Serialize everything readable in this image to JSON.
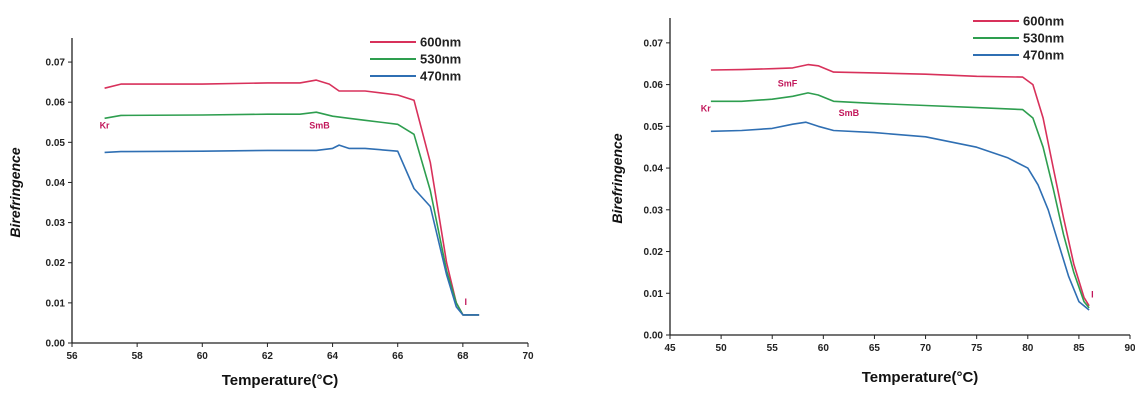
{
  "chart_data": [
    {
      "type": "line",
      "xlabel": "Temperature(°C)",
      "ylabel": "Birefringence",
      "xlim": [
        56,
        70
      ],
      "ylim": [
        0.0,
        0.075
      ],
      "xticks": [
        "56",
        "58",
        "60",
        "62",
        "64",
        "66",
        "68",
        "70"
      ],
      "yticks": [
        "0.00",
        "0.01",
        "0.02",
        "0.03",
        "0.04",
        "0.05",
        "0.06",
        "0.07"
      ],
      "legend": "top-right",
      "grid": false,
      "annotations": [
        {
          "text": "Kr",
          "x": 57.0,
          "y": 0.0535
        },
        {
          "text": "SmB",
          "x": 63.6,
          "y": 0.0535
        },
        {
          "text": "I",
          "x": 68.05,
          "y": 0.0095
        }
      ],
      "series": [
        {
          "name": "600nm",
          "color": "#d8315b",
          "x": [
            57.0,
            57.5,
            60,
            62,
            63.0,
            63.5,
            63.9,
            64.2,
            65.0,
            66.0,
            66.5,
            67.0,
            67.5,
            67.8,
            68.0,
            68.5
          ],
          "y": [
            0.0635,
            0.0645,
            0.0645,
            0.0648,
            0.0648,
            0.0655,
            0.0645,
            0.0628,
            0.0628,
            0.0618,
            0.0605,
            0.045,
            0.02,
            0.01,
            0.007,
            0.007
          ]
        },
        {
          "name": "530nm",
          "color": "#2e9e4f",
          "x": [
            57.0,
            57.5,
            60,
            62,
            63.0,
            63.5,
            64.0,
            64.5,
            65.0,
            66.0,
            66.5,
            67.0,
            67.5,
            67.8,
            68.0,
            68.5
          ],
          "y": [
            0.056,
            0.0567,
            0.0568,
            0.057,
            0.057,
            0.0575,
            0.0565,
            0.056,
            0.0555,
            0.0545,
            0.052,
            0.038,
            0.018,
            0.01,
            0.007,
            0.007
          ]
        },
        {
          "name": "470nm",
          "color": "#2f6fb3",
          "x": [
            57.0,
            57.5,
            60,
            62,
            63.5,
            64.0,
            64.2,
            64.5,
            65.0,
            66.0,
            66.5,
            67.0,
            67.5,
            67.8,
            68.0,
            68.5
          ],
          "y": [
            0.0475,
            0.0477,
            0.0478,
            0.048,
            0.048,
            0.0485,
            0.0493,
            0.0485,
            0.0485,
            0.0478,
            0.0385,
            0.034,
            0.017,
            0.009,
            0.007,
            0.007
          ]
        }
      ]
    },
    {
      "type": "line",
      "xlabel": "Temperature(°C)",
      "ylabel": "Birefringence",
      "xlim": [
        45,
        90
      ],
      "ylim": [
        0.0,
        0.075
      ],
      "xticks": [
        "45",
        "50",
        "55",
        "60",
        "65",
        "70",
        "75",
        "80",
        "85",
        "90"
      ],
      "yticks": [
        "0.00",
        "0.01",
        "0.02",
        "0.03",
        "0.04",
        "0.05",
        "0.06",
        "0.07"
      ],
      "legend": "top-right",
      "grid": false,
      "annotations": [
        {
          "text": "Kr",
          "x": 48.5,
          "y": 0.0535
        },
        {
          "text": "SmF",
          "x": 56.5,
          "y": 0.0595
        },
        {
          "text": "SmB",
          "x": 62.5,
          "y": 0.0525
        },
        {
          "text": "I",
          "x": 86.2,
          "y": 0.009
        }
      ],
      "series": [
        {
          "name": "600nm",
          "color": "#d8315b",
          "x": [
            49,
            52,
            55,
            57,
            58.5,
            59.5,
            61,
            65,
            70,
            75,
            79.5,
            80.5,
            81.5,
            82.5,
            83.5,
            84.5,
            85.5,
            86
          ],
          "y": [
            0.0635,
            0.0636,
            0.0638,
            0.064,
            0.0648,
            0.0645,
            0.063,
            0.0628,
            0.0625,
            0.062,
            0.0618,
            0.06,
            0.052,
            0.04,
            0.028,
            0.017,
            0.009,
            0.007
          ]
        },
        {
          "name": "530nm",
          "color": "#2e9e4f",
          "x": [
            49,
            52,
            55,
            57,
            58.5,
            59.5,
            61,
            65,
            70,
            75,
            79.5,
            80.5,
            81.5,
            82.5,
            83.5,
            84.5,
            85.5,
            86
          ],
          "y": [
            0.056,
            0.056,
            0.0565,
            0.0572,
            0.058,
            0.0575,
            0.056,
            0.0555,
            0.055,
            0.0545,
            0.054,
            0.052,
            0.045,
            0.035,
            0.024,
            0.015,
            0.008,
            0.0065
          ]
        },
        {
          "name": "470nm",
          "color": "#2f6fb3",
          "x": [
            49,
            52,
            55,
            57,
            58.3,
            59.5,
            61,
            65,
            70,
            75,
            78,
            80,
            81,
            82,
            83,
            84,
            85,
            86
          ],
          "y": [
            0.0488,
            0.049,
            0.0495,
            0.0505,
            0.051,
            0.05,
            0.049,
            0.0485,
            0.0475,
            0.045,
            0.0425,
            0.04,
            0.036,
            0.03,
            0.022,
            0.014,
            0.008,
            0.006
          ]
        }
      ]
    }
  ]
}
